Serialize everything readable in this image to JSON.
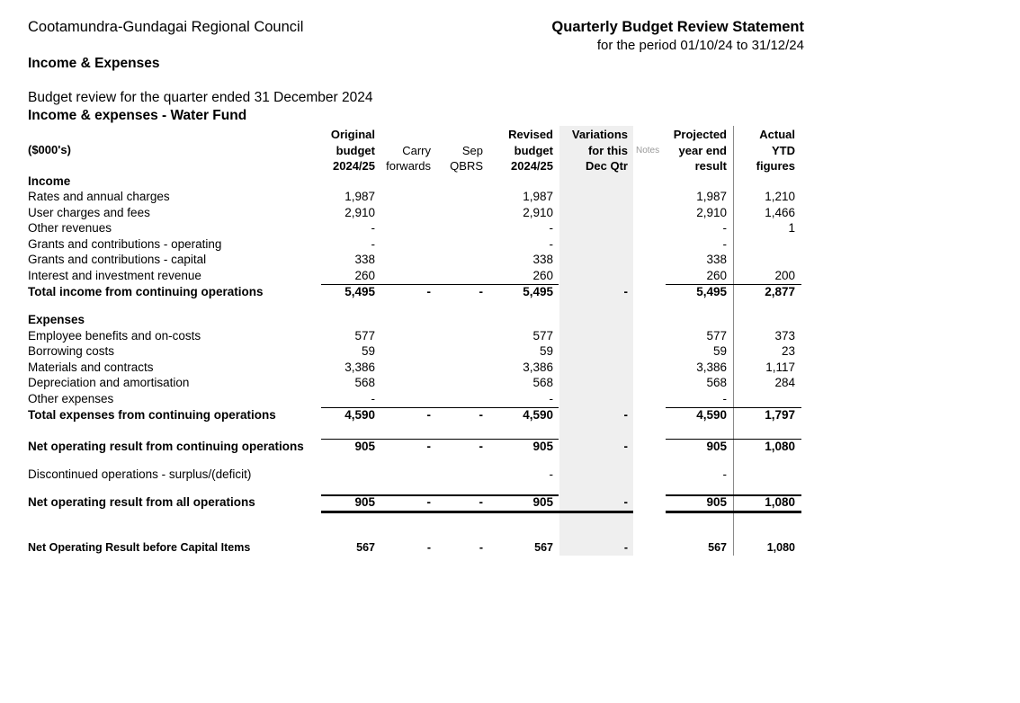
{
  "header": {
    "council": "Cootamundra-Gundagai Regional Council",
    "report_title": "Quarterly Budget Review Statement",
    "period": "for the period 01/10/24 to 31/12/24",
    "section": "Income & Expenses",
    "review_line": "Budget review for the quarter ended 31 December 2024",
    "fund_title": "Income & expenses - Water Fund"
  },
  "columns": {
    "unit": "($000's)",
    "original": [
      "Original",
      "budget",
      "2024/25"
    ],
    "carry": [
      "Carry",
      "forwards"
    ],
    "sep": [
      "Sep",
      "QBRS"
    ],
    "revised": [
      "Revised",
      "budget",
      "2024/25"
    ],
    "variations": [
      "Variations",
      "for this",
      "Dec  Qtr"
    ],
    "notes": "Notes",
    "projected": [
      "Projected",
      "year end",
      "result"
    ],
    "actual": [
      "Actual",
      "YTD",
      "figures"
    ]
  },
  "income": {
    "heading": "Income",
    "rows": [
      {
        "label": "Rates and annual charges",
        "original": "1,987",
        "carry": "",
        "sep": "",
        "revised": "1,987",
        "var": "",
        "projected": "1,987",
        "actual": "1,210"
      },
      {
        "label": "User charges and fees",
        "original": "2,910",
        "carry": "",
        "sep": "",
        "revised": "2,910",
        "var": "",
        "projected": "2,910",
        "actual": "1,466"
      },
      {
        "label": "Other revenues",
        "original": "-",
        "carry": "",
        "sep": "",
        "revised": "-",
        "var": "",
        "projected": "-",
        "actual": "1"
      },
      {
        "label": "Grants and contributions - operating",
        "original": "-",
        "carry": "",
        "sep": "",
        "revised": "-",
        "var": "",
        "projected": "-",
        "actual": ""
      },
      {
        "label": "Grants and contributions - capital",
        "original": "338",
        "carry": "",
        "sep": "",
        "revised": "338",
        "var": "",
        "projected": "338",
        "actual": ""
      },
      {
        "label": "Interest and investment revenue",
        "original": "260",
        "carry": "",
        "sep": "",
        "revised": "260",
        "var": "",
        "projected": "260",
        "actual": "200"
      }
    ],
    "total": {
      "label": "Total income from continuing operations",
      "original": "5,495",
      "carry": "-",
      "sep": "-",
      "revised": "5,495",
      "var": "-",
      "projected": "5,495",
      "actual": "2,877"
    }
  },
  "expenses": {
    "heading": "Expenses",
    "rows": [
      {
        "label": "Employee benefits and on-costs",
        "original": "577",
        "carry": "",
        "sep": "",
        "revised": "577",
        "var": "",
        "projected": "577",
        "actual": "373"
      },
      {
        "label": "Borrowing costs",
        "original": "59",
        "carry": "",
        "sep": "",
        "revised": "59",
        "var": "",
        "projected": "59",
        "actual": "23"
      },
      {
        "label": "Materials and contracts",
        "original": "3,386",
        "carry": "",
        "sep": "",
        "revised": "3,386",
        "var": "",
        "projected": "3,386",
        "actual": "1,117"
      },
      {
        "label": "Depreciation and amortisation",
        "original": "568",
        "carry": "",
        "sep": "",
        "revised": "568",
        "var": "",
        "projected": "568",
        "actual": "284"
      },
      {
        "label": "Other expenses",
        "original": "-",
        "carry": "",
        "sep": "",
        "revised": "-",
        "var": "",
        "projected": "-",
        "actual": ""
      }
    ],
    "total": {
      "label": "Total expenses from continuing operations",
      "original": "4,590",
      "carry": "-",
      "sep": "-",
      "revised": "4,590",
      "var": "-",
      "projected": "4,590",
      "actual": "1,797"
    }
  },
  "net_continuing": {
    "label": "Net operating result from continuing operations",
    "original": "905",
    "carry": "-",
    "sep": "-",
    "revised": "905",
    "var": "-",
    "projected": "905",
    "actual": "1,080"
  },
  "discontinued": {
    "label": "Discontinued operations - surplus/(deficit)",
    "original": "",
    "carry": "",
    "sep": "",
    "revised": "-",
    "var": "",
    "projected": "-",
    "actual": ""
  },
  "net_all": {
    "label": "Net operating result from all operations",
    "original": "905",
    "carry": "-",
    "sep": "-",
    "revised": "905",
    "var": "-",
    "projected": "905",
    "actual": "1,080"
  },
  "net_before_capital": {
    "label": "Net Operating Result before Capital Items",
    "original": "567",
    "carry": "-",
    "sep": "-",
    "revised": "567",
    "var": "-",
    "projected": "567",
    "actual": "1,080"
  }
}
